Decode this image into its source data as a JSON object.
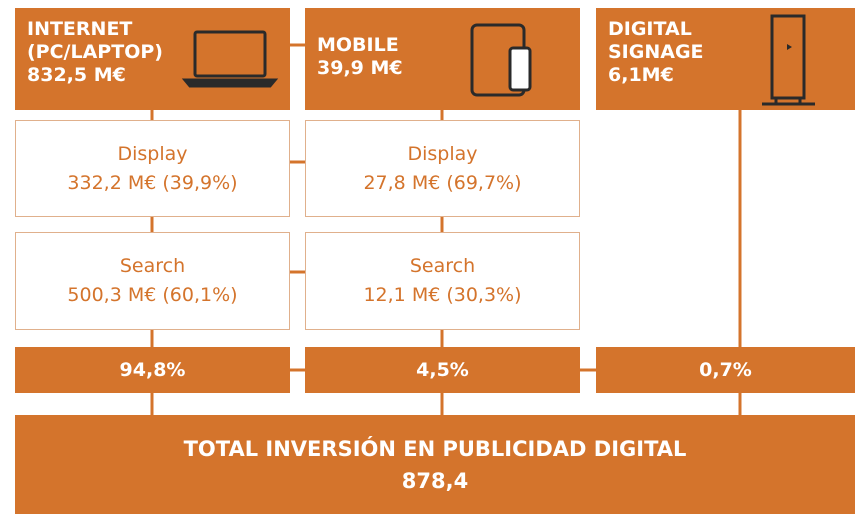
{
  "columns": [
    {
      "title_lines": [
        "INTERNET",
        "(PC/LAPTOP)"
      ],
      "amount": "832,5 M€",
      "display": {
        "label": "Display",
        "value": "332,2 M€ (39,9%)"
      },
      "search": {
        "label": "Search",
        "value": "500,3 M€ (60,1%)"
      },
      "share": "94,8%"
    },
    {
      "title_lines": [
        "MOBILE"
      ],
      "amount": "39,9 M€",
      "display": {
        "label": "Display",
        "value": "27,8 M€ (69,7%)"
      },
      "search": {
        "label": "Search",
        "value": "12,1 M€ (30,3%)"
      },
      "share": "4,5%"
    },
    {
      "title_lines": [
        "DIGITAL",
        "SIGNAGE"
      ],
      "amount": "6,1M€",
      "share": "0,7%"
    }
  ],
  "total": {
    "title": "TOTAL INVERSIÓN EN PUBLICIDAD DIGITAL",
    "value": "878,4"
  }
}
